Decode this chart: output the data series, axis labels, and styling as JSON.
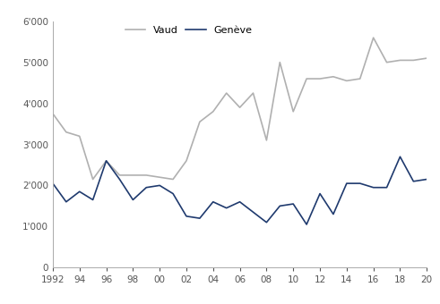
{
  "years": [
    1992,
    1993,
    1994,
    1995,
    1996,
    1997,
    1998,
    1999,
    2000,
    2001,
    2002,
    2003,
    2004,
    2005,
    2006,
    2007,
    2008,
    2009,
    2010,
    2011,
    2012,
    2013,
    2014,
    2015,
    2016,
    2017,
    2018,
    2019,
    2020
  ],
  "vaud": [
    3750,
    3300,
    3200,
    2150,
    2600,
    2250,
    2250,
    2250,
    2200,
    2150,
    2600,
    3550,
    3800,
    4250,
    3900,
    4250,
    3100,
    5000,
    3800,
    4600,
    4600,
    4650,
    4550,
    4600,
    5600,
    5000,
    5050,
    5050,
    5100
  ],
  "geneve": [
    2050,
    1600,
    1850,
    1650,
    2600,
    2150,
    1650,
    1950,
    2000,
    1800,
    1250,
    1200,
    1600,
    1450,
    1600,
    1350,
    1100,
    1500,
    1550,
    1050,
    1800,
    1300,
    2050,
    2050,
    1950,
    1950,
    2700,
    2100,
    2150
  ],
  "vaud_color": "#b0b0b0",
  "geneve_color": "#1f3a6e",
  "legend_vaud": "Vaud",
  "legend_geneve": "Genève",
  "ylim": [
    0,
    6000
  ],
  "yticks": [
    0,
    1000,
    2000,
    3000,
    4000,
    5000,
    6000
  ],
  "ytick_labels": [
    "0",
    "1'000",
    "2'000",
    "3'000",
    "4'000",
    "5'000",
    "6'000"
  ],
  "xtick_labels": [
    "1992",
    "94",
    "96",
    "98",
    "00",
    "02",
    "04",
    "06",
    "08",
    "10",
    "12",
    "14",
    "16",
    "18",
    "20"
  ],
  "xtick_years": [
    1992,
    1994,
    1996,
    1998,
    2000,
    2002,
    2004,
    2006,
    2008,
    2010,
    2012,
    2014,
    2016,
    2018,
    2020
  ],
  "line_width": 1.2,
  "background_color": "#ffffff",
  "spine_color": "#aaaaaa",
  "tick_color": "#555555",
  "fontsize": 7.5
}
